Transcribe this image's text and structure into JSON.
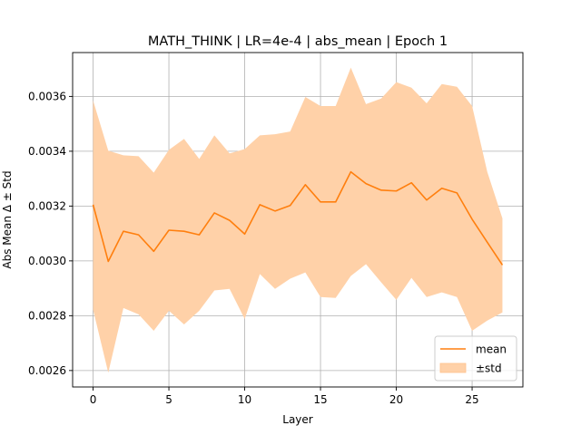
{
  "chart_data": {
    "type": "line",
    "title": "MATH_THINK | LR=4e-4 | abs_mean | Epoch 1",
    "xlabel": "Layer",
    "ylabel": "Abs Mean Δ ± Std",
    "xlim": [
      -1.35,
      28.35
    ],
    "ylim": [
      0.00254,
      0.00376
    ],
    "xticks": [
      0,
      5,
      10,
      15,
      20,
      25
    ],
    "xtick_labels": [
      "0",
      "5",
      "10",
      "15",
      "20",
      "25"
    ],
    "yticks": [
      0.0026,
      0.0028,
      0.003,
      0.0032,
      0.0034,
      0.0036
    ],
    "ytick_labels": [
      "0.0026",
      "0.0028",
      "0.0030",
      "0.0032",
      "0.0034",
      "0.0036"
    ],
    "grid": true,
    "legend_position": "lower-right",
    "colors": {
      "mean": "#ff7f0e",
      "std_fill": "#ffd1a8"
    },
    "x": [
      0,
      1,
      2,
      3,
      4,
      5,
      6,
      7,
      8,
      9,
      10,
      11,
      12,
      13,
      14,
      15,
      16,
      17,
      18,
      19,
      20,
      21,
      22,
      23,
      24,
      25,
      26,
      27
    ],
    "series": [
      {
        "name": "mean",
        "values": [
          0.003205,
          0.002998,
          0.003108,
          0.003095,
          0.003035,
          0.003112,
          0.003108,
          0.003095,
          0.003175,
          0.003148,
          0.003098,
          0.003205,
          0.003182,
          0.003202,
          0.003278,
          0.003215,
          0.003215,
          0.003325,
          0.003282,
          0.003258,
          0.003255,
          0.003285,
          0.003222,
          0.003265,
          0.003248,
          0.003152,
          0.003068,
          0.002985
        ]
      },
      {
        "name": "±std",
        "upper": [
          0.003585,
          0.003402,
          0.003385,
          0.003382,
          0.003322,
          0.003405,
          0.003445,
          0.003372,
          0.003458,
          0.003392,
          0.003408,
          0.003458,
          0.003462,
          0.003472,
          0.003598,
          0.003565,
          0.003565,
          0.003705,
          0.003572,
          0.003592,
          0.003652,
          0.003632,
          0.003575,
          0.003645,
          0.003635,
          0.003565,
          0.003325,
          0.003155
        ],
        "lower": [
          0.002822,
          0.002592,
          0.002828,
          0.002805,
          0.002745,
          0.002818,
          0.002768,
          0.002818,
          0.002892,
          0.002898,
          0.002788,
          0.002952,
          0.002898,
          0.002935,
          0.002958,
          0.002868,
          0.002865,
          0.002945,
          0.002988,
          0.002922,
          0.002858,
          0.002938,
          0.002868,
          0.002885,
          0.002868,
          0.002745,
          0.002782,
          0.002812
        ]
      }
    ]
  }
}
